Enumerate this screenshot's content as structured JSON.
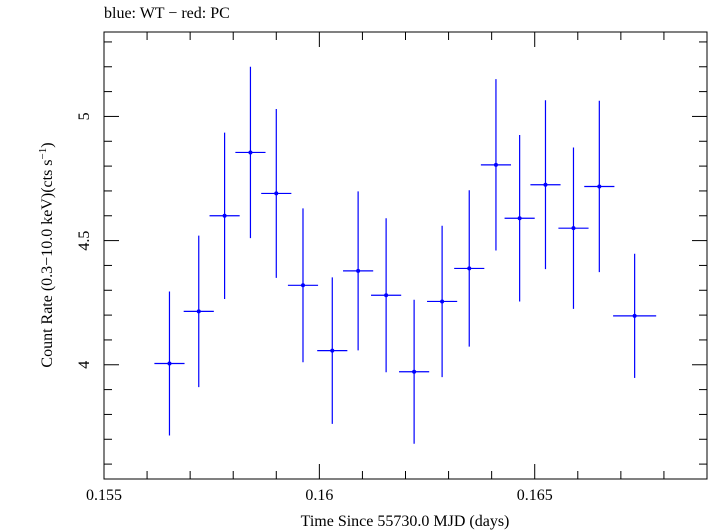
{
  "chart_data": {
    "type": "scatter",
    "title": "blue: WT − red: PC",
    "xlabel": "Time Since 55730.0 MJD (days)",
    "ylabel_main": "Count Rate (0.3−10.0 keV)(cts s",
    "ylabel_sup": "−1",
    "ylabel_tail": ")",
    "xlim": [
      0.155,
      0.169
    ],
    "ylim": [
      3.54,
      5.34
    ],
    "x_ticks": [
      0.155,
      0.16,
      0.165
    ],
    "x_tick_labels": [
      "0.155",
      "0.16",
      "0.165"
    ],
    "y_ticks": [
      4,
      4.5,
      5
    ],
    "y_tick_labels": [
      "4",
      "4.5",
      "5"
    ],
    "grid": false,
    "series": [
      {
        "color": "#0000ff",
        "points": [
          {
            "x": 0.15652,
            "xerr": 0.00035,
            "y": 4.005,
            "yerr": 0.29
          },
          {
            "x": 0.1572,
            "xerr": 0.00035,
            "y": 4.215,
            "yerr": 0.305
          },
          {
            "x": 0.1578,
            "xerr": 0.00035,
            "y": 4.6,
            "yerr": 0.335
          },
          {
            "x": 0.1584,
            "xerr": 0.00035,
            "y": 4.855,
            "yerr": 0.345
          },
          {
            "x": 0.159,
            "xerr": 0.00035,
            "y": 4.69,
            "yerr": 0.34
          },
          {
            "x": 0.15962,
            "xerr": 0.00035,
            "y": 4.32,
            "yerr": 0.31
          },
          {
            "x": 0.1603,
            "xerr": 0.00035,
            "y": 4.057,
            "yerr": 0.295
          },
          {
            "x": 0.1609,
            "xerr": 0.00035,
            "y": 4.378,
            "yerr": 0.32
          },
          {
            "x": 0.16155,
            "xerr": 0.00035,
            "y": 4.28,
            "yerr": 0.31
          },
          {
            "x": 0.1622,
            "xerr": 0.00035,
            "y": 3.972,
            "yerr": 0.29
          },
          {
            "x": 0.16285,
            "xerr": 0.00035,
            "y": 4.255,
            "yerr": 0.305
          },
          {
            "x": 0.16348,
            "xerr": 0.00035,
            "y": 4.388,
            "yerr": 0.315
          },
          {
            "x": 0.1641,
            "xerr": 0.00035,
            "y": 4.805,
            "yerr": 0.345
          },
          {
            "x": 0.16465,
            "xerr": 0.00035,
            "y": 4.59,
            "yerr": 0.335
          },
          {
            "x": 0.16525,
            "xerr": 0.00035,
            "y": 4.725,
            "yerr": 0.34
          },
          {
            "x": 0.1659,
            "xerr": 0.00035,
            "y": 4.55,
            "yerr": 0.325
          },
          {
            "x": 0.1665,
            "xerr": 0.00035,
            "y": 4.718,
            "yerr": 0.345
          },
          {
            "x": 0.16732,
            "xerr": 0.0005,
            "y": 4.197,
            "yerr": 0.25
          }
        ]
      }
    ]
  }
}
